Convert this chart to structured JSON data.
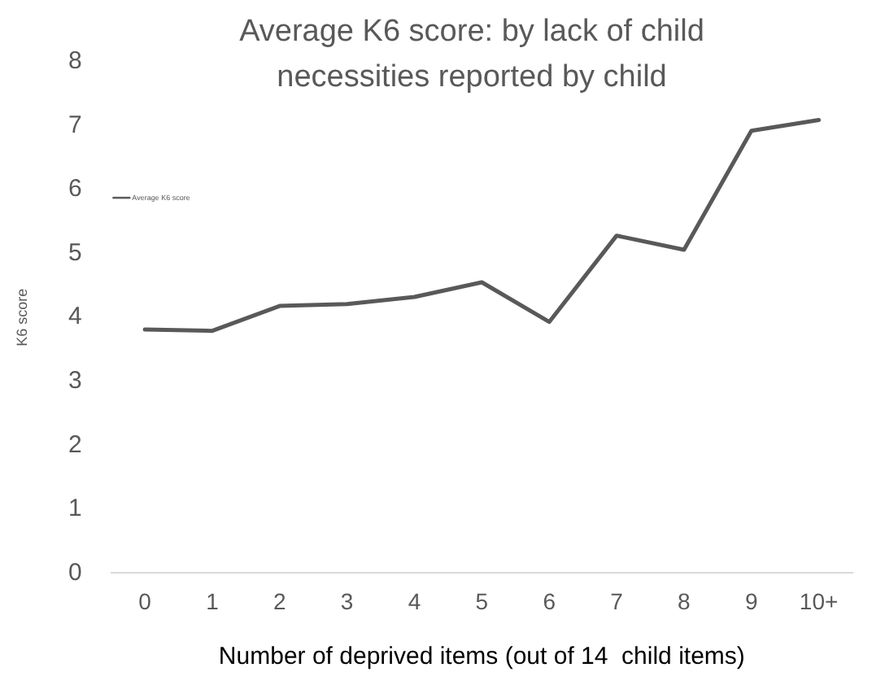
{
  "chart_data": {
    "type": "line",
    "title": "Average K6 score: by lack of child necessities reported by child",
    "xlabel": "Number of deprived items (out of 14  child items)",
    "ylabel": "K6 score",
    "categories": [
      "0",
      "1",
      "2",
      "3",
      "4",
      "5",
      "6",
      "7",
      "8",
      "9",
      "10+"
    ],
    "series": [
      {
        "name": "Average K6 score",
        "color": "#595959",
        "values": [
          3.81,
          3.79,
          4.18,
          4.21,
          4.32,
          4.55,
          3.93,
          5.28,
          5.06,
          6.92,
          7.09
        ]
      }
    ],
    "ylim": [
      0,
      8
    ],
    "yticks": [
      0,
      1,
      2,
      3,
      4,
      5,
      6,
      7,
      8
    ],
    "grid": false,
    "legend": "left",
    "marker": "none",
    "line_style": "solid"
  }
}
